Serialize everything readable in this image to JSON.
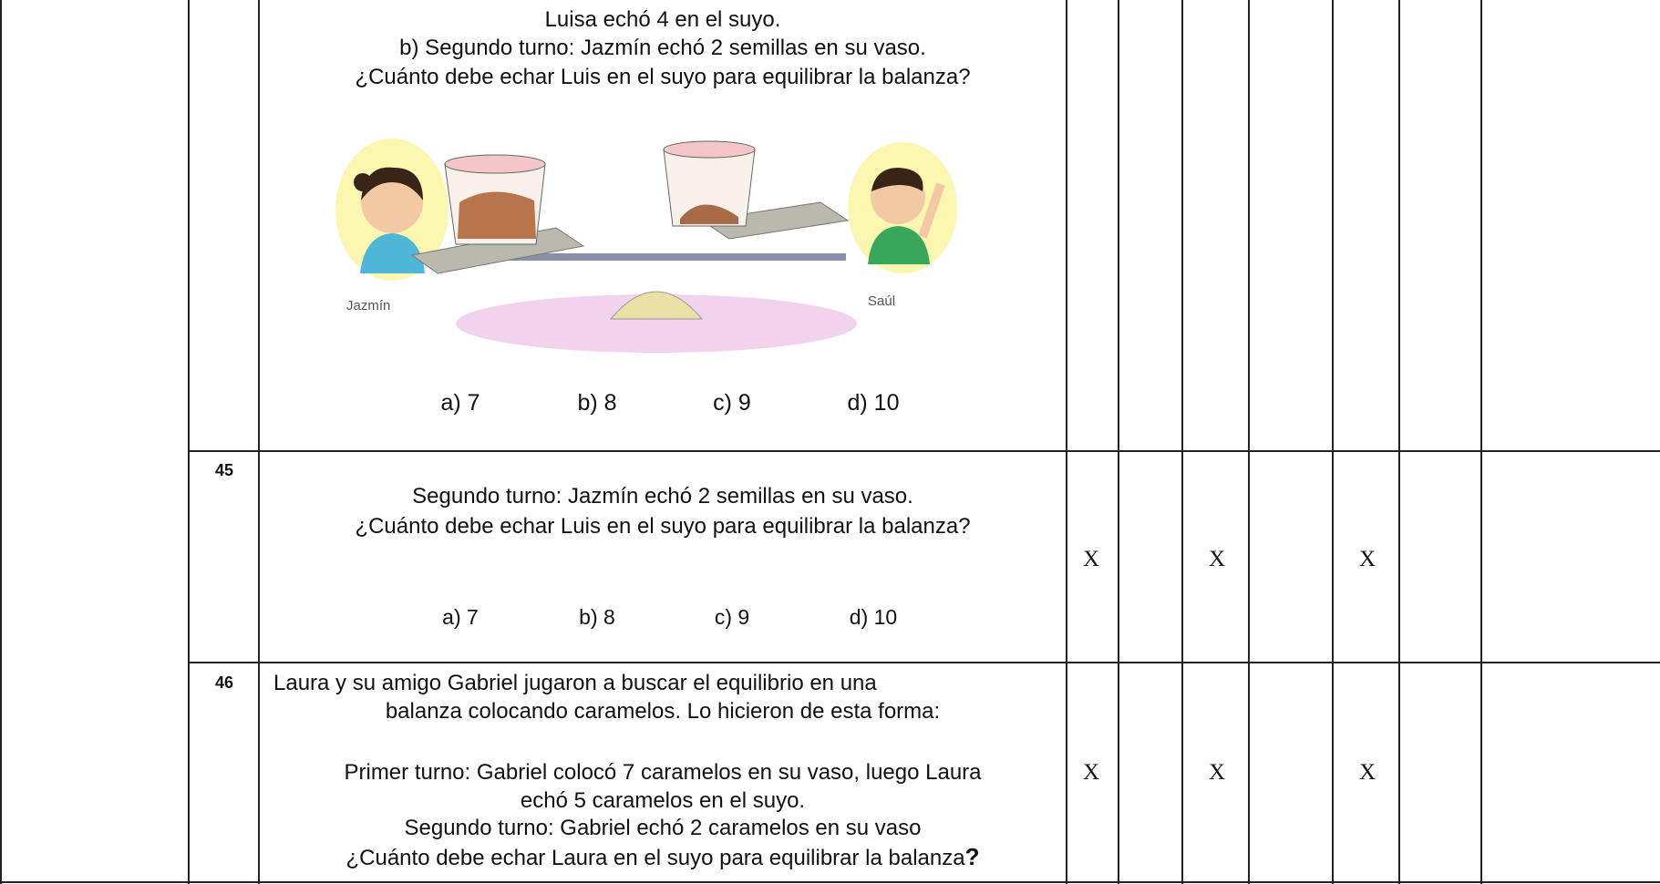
{
  "table": {
    "rows": [
      {
        "lines": [
          "Luisa echó 4 en el suyo.",
          "b)  Segundo turno: Jazmín echó 2 semillas en su vaso.",
          "¿Cuánto debe echar Luis en el suyo para equilibrar la balanza?"
        ],
        "image_labels": [
          "Jazmín",
          "Saúl"
        ],
        "options": [
          "a) 7",
          "b) 8",
          "c) 9",
          "d) 10"
        ]
      },
      {
        "number": "45",
        "lines": [
          "Segundo turno: Jazmín echó 2 semillas en su vaso.",
          "¿Cuánto debe echar Luis en el suyo para equilibrar la balanza?"
        ],
        "options": [
          "a) 7",
          "b) 8",
          "c) 9",
          "d) 10"
        ],
        "marks": [
          "X",
          null,
          "X",
          null,
          "X",
          null,
          null
        ]
      },
      {
        "number": "46",
        "lines": [
          "Laura y su amigo Gabriel jugaron a buscar el equilibrio en una",
          "balanza colocando caramelos. Lo hicieron de esta forma:",
          "Primer turno: Gabriel colocó 7 caramelos en su vaso, luego Laura",
          "echó 5 caramelos en el suyo.",
          "Segundo turno: Gabriel echó 2 caramelos en su vaso",
          "¿Cuánto debe echar Laura en el suyo para equilibrar la balanza"
        ],
        "final_mark": "?",
        "marks": [
          "X",
          null,
          "X",
          null,
          "X",
          null,
          null
        ]
      }
    ]
  }
}
